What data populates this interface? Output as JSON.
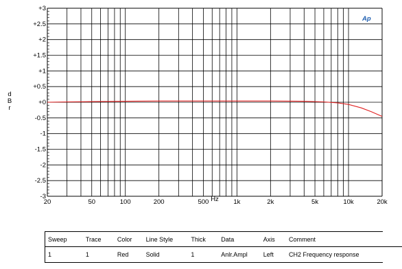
{
  "chart_data": {
    "type": "line",
    "title": "",
    "xlabel": "Hz",
    "ylabel": "d B r",
    "xscale": "log",
    "xlim": [
      20,
      20000
    ],
    "ylim": [
      -3,
      3
    ],
    "x_ticks": [
      {
        "value": 20,
        "label": "20"
      },
      {
        "value": 50,
        "label": "50"
      },
      {
        "value": 100,
        "label": "100"
      },
      {
        "value": 200,
        "label": "200"
      },
      {
        "value": 500,
        "label": "500"
      },
      {
        "value": 1000,
        "label": "1k"
      },
      {
        "value": 2000,
        "label": "2k"
      },
      {
        "value": 5000,
        "label": "5k"
      },
      {
        "value": 10000,
        "label": "10k"
      },
      {
        "value": 20000,
        "label": "20k"
      }
    ],
    "y_ticks": [
      {
        "value": 3,
        "label": "+3"
      },
      {
        "value": 2.5,
        "label": "+2.5"
      },
      {
        "value": 2,
        "label": "+2"
      },
      {
        "value": 1.5,
        "label": "+1.5"
      },
      {
        "value": 1,
        "label": "+1"
      },
      {
        "value": 0.5,
        "label": "+0.5"
      },
      {
        "value": 0,
        "label": "+0"
      },
      {
        "value": -0.5,
        "label": "-0.5"
      },
      {
        "value": -1,
        "label": "-1"
      },
      {
        "value": -1.5,
        "label": "-1.5"
      },
      {
        "value": -2,
        "label": "-2"
      },
      {
        "value": -2.5,
        "label": "-2.5"
      },
      {
        "value": -3,
        "label": "-3"
      }
    ],
    "grid": true,
    "series": [
      {
        "name": "CH2 Frequency response",
        "color": "#e02020",
        "x": [
          20,
          30,
          50,
          100,
          200,
          500,
          1000,
          2000,
          4000,
          6000,
          8000,
          10000,
          13000,
          16000,
          20000
        ],
        "y": [
          0.0,
          0.01,
          0.02,
          0.03,
          0.04,
          0.04,
          0.04,
          0.04,
          0.03,
          0.01,
          -0.02,
          -0.07,
          -0.18,
          -0.3,
          -0.45
        ]
      }
    ]
  },
  "logo_text": "Ap",
  "legend_table": {
    "headers": [
      "Sweep",
      "Trace",
      "Color",
      "Line Style",
      "Thick",
      "Data",
      "Axis",
      "Comment"
    ],
    "rows": [
      [
        "1",
        "1",
        "Red",
        "Solid",
        "1",
        "Anlr.Ampl",
        "Left",
        "CH2 Frequency response"
      ]
    ]
  }
}
